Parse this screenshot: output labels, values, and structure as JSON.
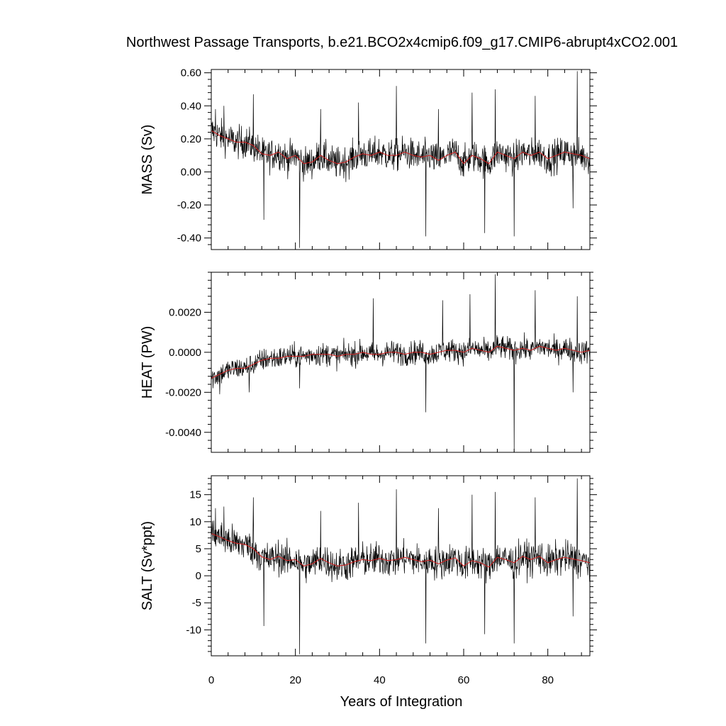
{
  "chart_data": {
    "type": "line",
    "title": "Northwest Passage Transports, b.e21.BCO2x4cmip6.f09_g17.CMIP6-abrupt4xCO2.001",
    "xlabel": "Years of Integration",
    "xlim": [
      0,
      90
    ],
    "xticks": [
      0,
      20,
      40,
      60,
      80
    ],
    "xtick_labels": [
      "0",
      "20",
      "40",
      "60",
      "80"
    ],
    "series_colors": {
      "monthly": "#000000",
      "annual_running_mean": "#d62020"
    },
    "panels": [
      {
        "id": "mass",
        "ylabel": "MASS (Sv)",
        "ylim": [
          -0.47,
          0.62
        ],
        "yticks": [
          -0.4,
          -0.2,
          0.0,
          0.2,
          0.4,
          0.6
        ],
        "ytick_labels": [
          "-0.40",
          "-0.20",
          "0.00",
          "0.20",
          "0.40",
          "0.60"
        ],
        "smooth_x": [
          0,
          2,
          4,
          6,
          8,
          10,
          12,
          14,
          16,
          18,
          20,
          22,
          24,
          26,
          28,
          30,
          32,
          34,
          36,
          38,
          40,
          42,
          44,
          46,
          48,
          50,
          52,
          54,
          56,
          58,
          60,
          62,
          64,
          66,
          68,
          70,
          72,
          74,
          76,
          78,
          80,
          82,
          84,
          86,
          88,
          90
        ],
        "smooth_y": [
          0.25,
          0.22,
          0.2,
          0.18,
          0.18,
          0.16,
          0.11,
          0.1,
          0.12,
          0.08,
          0.1,
          0.05,
          0.06,
          0.1,
          0.07,
          0.05,
          0.06,
          0.09,
          0.11,
          0.1,
          0.12,
          0.1,
          0.1,
          0.12,
          0.1,
          0.09,
          0.1,
          0.07,
          0.1,
          0.12,
          0.05,
          0.1,
          0.08,
          0.05,
          0.12,
          0.1,
          0.08,
          0.12,
          0.1,
          0.12,
          0.08,
          0.1,
          0.12,
          0.11,
          0.1,
          0.08
        ],
        "noise_amp": 0.1,
        "spikes": [
          [
            1,
            0.38
          ],
          [
            3,
            0.4
          ],
          [
            10,
            0.47
          ],
          [
            12.5,
            -0.29
          ],
          [
            21,
            -0.46
          ],
          [
            26,
            0.38
          ],
          [
            35,
            0.42
          ],
          [
            44,
            0.52
          ],
          [
            51,
            -0.39
          ],
          [
            54,
            0.38
          ],
          [
            62,
            0.48
          ],
          [
            65,
            -0.37
          ],
          [
            67.5,
            0.5
          ],
          [
            72,
            -0.39
          ],
          [
            77,
            0.46
          ],
          [
            86,
            -0.22
          ],
          [
            87,
            0.61
          ]
        ]
      },
      {
        "id": "heat",
        "ylabel": "HEAT (PW)",
        "ylim": [
          -0.005,
          0.004
        ],
        "yticks": [
          -0.004,
          -0.002,
          0.0,
          0.002
        ],
        "ytick_labels": [
          "-0.0040",
          "-0.0020",
          "0.0000",
          "0.0020"
        ],
        "smooth_x": [
          0,
          2,
          4,
          6,
          8,
          10,
          12,
          14,
          16,
          18,
          20,
          22,
          24,
          26,
          28,
          30,
          32,
          34,
          36,
          38,
          40,
          42,
          44,
          46,
          48,
          50,
          52,
          54,
          56,
          58,
          60,
          62,
          64,
          66,
          68,
          70,
          72,
          74,
          76,
          78,
          80,
          82,
          84,
          86,
          88,
          90
        ],
        "smooth_y": [
          -0.0013,
          -0.0011,
          -0.0009,
          -0.0008,
          -0.0008,
          -0.0006,
          -0.0004,
          -0.0003,
          -0.0003,
          -0.0002,
          -0.0002,
          -0.0002,
          -0.0001,
          -0.0001,
          -0.0001,
          -0.0002,
          -0.0001,
          -0.0001,
          0.0,
          -0.0001,
          -0.0001,
          0.0,
          0.0,
          -0.0001,
          0.0,
          0.0,
          -0.0001,
          0.0,
          0.0001,
          0.0001,
          0.0,
          0.0002,
          0.0001,
          0.0,
          0.0003,
          0.0002,
          0.0001,
          0.0002,
          0.0001,
          0.0003,
          0.0002,
          0.0001,
          0.0002,
          0.0001,
          0.0,
          0.0001
        ],
        "noise_amp": 0.0006,
        "spikes": [
          [
            2,
            -0.0021
          ],
          [
            9,
            -0.002
          ],
          [
            21,
            -0.0018
          ],
          [
            38.5,
            0.0027
          ],
          [
            51,
            -0.003
          ],
          [
            55,
            0.0026
          ],
          [
            61.5,
            0.0029
          ],
          [
            67.5,
            0.0039
          ],
          [
            72,
            -0.005
          ],
          [
            77,
            0.0031
          ],
          [
            86,
            -0.002
          ],
          [
            87,
            0.0028
          ]
        ]
      },
      {
        "id": "salt",
        "ylabel": "SALT (Sv*ppt)",
        "ylim": [
          -14.8,
          18.5
        ],
        "yticks": [
          -10,
          -5,
          0,
          5,
          10,
          15
        ],
        "ytick_labels": [
          "-10",
          "-5",
          "0",
          "5",
          "10",
          "15"
        ],
        "smooth_x": [
          0,
          2,
          4,
          6,
          8,
          10,
          12,
          14,
          16,
          18,
          20,
          22,
          24,
          26,
          28,
          30,
          32,
          34,
          36,
          38,
          40,
          42,
          44,
          46,
          48,
          50,
          52,
          54,
          56,
          58,
          60,
          62,
          64,
          66,
          68,
          70,
          72,
          74,
          76,
          78,
          80,
          82,
          84,
          86,
          88,
          90
        ],
        "smooth_y": [
          7.8,
          7.2,
          6.5,
          6.0,
          5.8,
          5.0,
          3.5,
          3.0,
          3.6,
          2.8,
          3.0,
          1.8,
          2.2,
          3.2,
          2.4,
          1.8,
          2.0,
          2.6,
          3.0,
          2.8,
          3.2,
          2.8,
          3.0,
          3.4,
          3.0,
          2.6,
          2.9,
          2.2,
          2.9,
          3.3,
          1.8,
          2.8,
          2.4,
          1.6,
          3.4,
          3.0,
          2.4,
          3.6,
          3.0,
          3.6,
          2.4,
          3.0,
          3.4,
          3.1,
          2.8,
          2.4
        ],
        "noise_amp": 3.2,
        "spikes": [
          [
            1,
            12.5
          ],
          [
            3,
            12.8
          ],
          [
            10,
            14.5
          ],
          [
            12.5,
            -9.3
          ],
          [
            21,
            -14.5
          ],
          [
            26,
            12.0
          ],
          [
            35,
            13.5
          ],
          [
            44,
            16.0
          ],
          [
            51,
            -12.5
          ],
          [
            54,
            12.5
          ],
          [
            62,
            15.0
          ],
          [
            65,
            -10.8
          ],
          [
            67.5,
            15.5
          ],
          [
            72,
            -12.5
          ],
          [
            77,
            14.5
          ],
          [
            86,
            -7.5
          ],
          [
            87,
            18.0
          ]
        ]
      }
    ]
  }
}
